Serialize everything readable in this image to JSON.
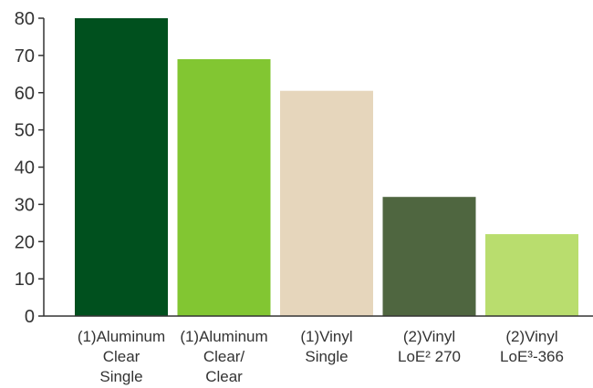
{
  "chart_data": {
    "type": "bar",
    "title": "",
    "xlabel": "",
    "ylabel": "",
    "ylim": [
      0,
      80
    ],
    "yticks": [
      0,
      10,
      20,
      30,
      40,
      50,
      60,
      70,
      80
    ],
    "grid": false,
    "categories": [
      "(1)Aluminum Clear Single",
      "(1)Aluminum Clear/ Clear",
      "(1)Vinyl Single",
      "(2)Vinyl LoE² 270",
      "(2)Vinyl LoE³-366"
    ],
    "category_label_lines": [
      [
        "(1)Aluminum",
        "Clear",
        "Single"
      ],
      [
        "(1)Aluminum",
        "Clear/",
        "Clear"
      ],
      [
        "(1)Vinyl",
        "Single"
      ],
      [
        "(2)Vinyl",
        "LoE² 270"
      ],
      [
        "(2)Vinyl",
        "LoE³-366"
      ]
    ],
    "values": [
      80,
      69,
      60.5,
      32,
      22
    ],
    "colors": [
      "#00501e",
      "#82c632",
      "#e6d6bc",
      "#4f6640",
      "#b9dd6e"
    ],
    "axis_color": "#333333"
  }
}
